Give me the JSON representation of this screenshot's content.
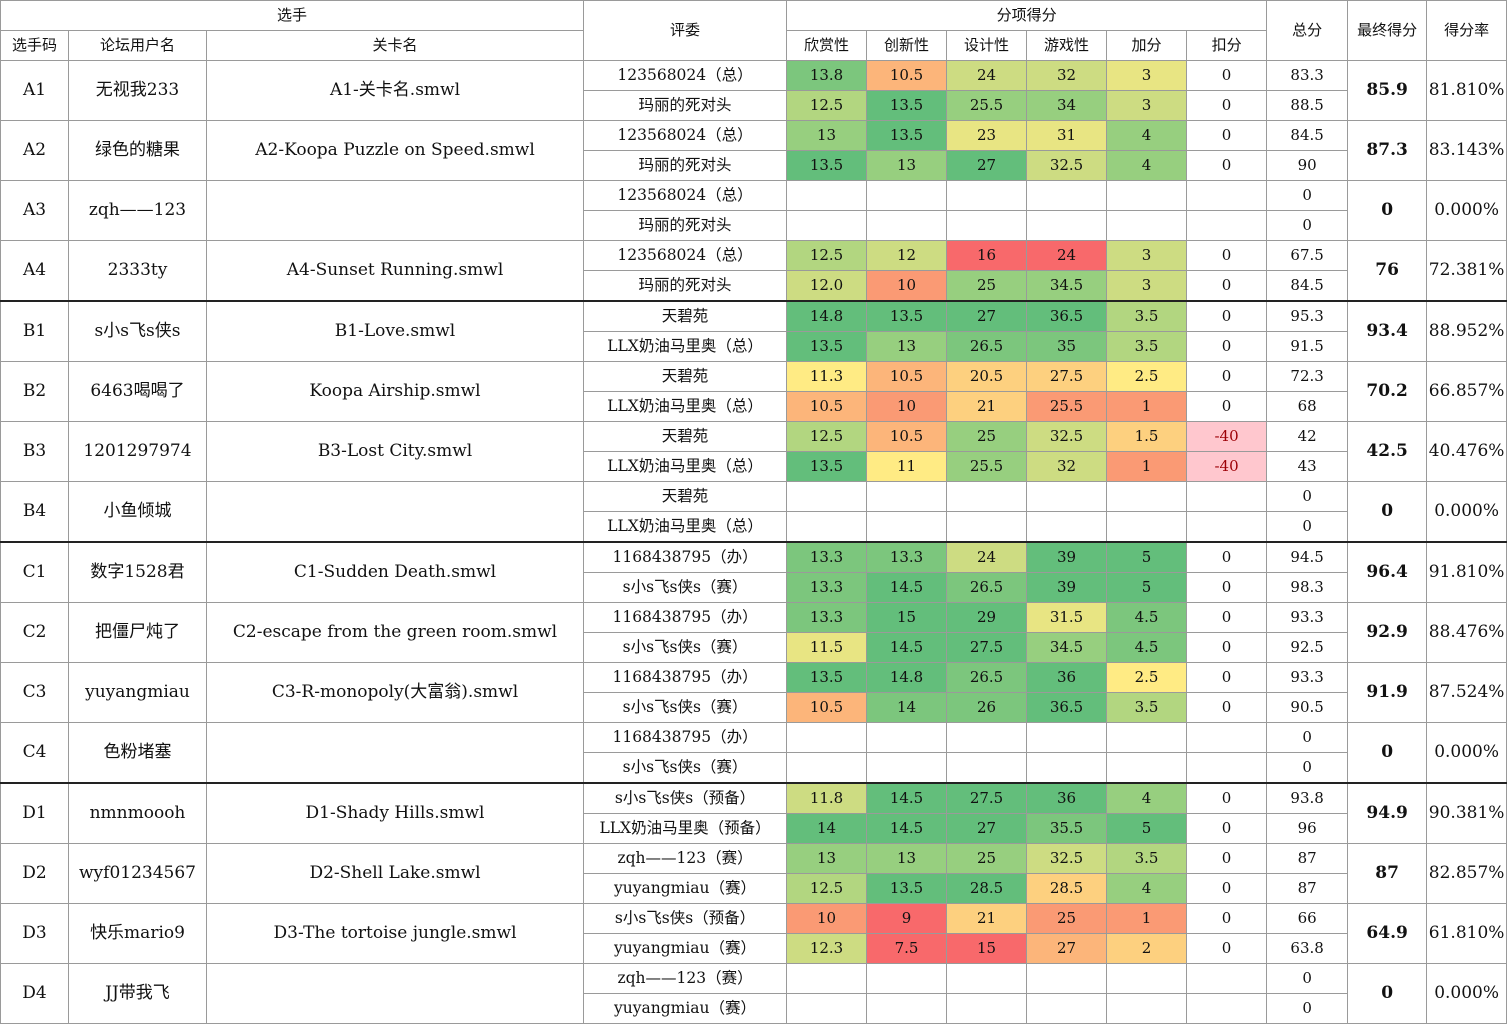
{
  "header": {
    "group_contestant": "选手",
    "contestant_code": "选手码",
    "forum_username": "论坛用户名",
    "level_name": "关卡名",
    "judge": "评委",
    "group_sub_scores": "分项得分",
    "appreciation": "欣赏性",
    "innovation": "创新性",
    "design": "设计性",
    "gameplay": "游戏性",
    "bonus": "加分",
    "penalty": "扣分",
    "total": "总分",
    "final_score": "最终得分",
    "score_rate": "得分率"
  },
  "colors": {
    "g1": "#63be7b",
    "g2": "#7cc67d",
    "g3": "#97cf7f",
    "g4": "#b2d680",
    "y1": "#cddc82",
    "y2": "#e8e583",
    "y3": "#ffeb84",
    "o1": "#fdd07f",
    "o2": "#fcb57a",
    "o3": "#fa9a74",
    "r1": "#f8696b",
    "pink": "#ffc7ce",
    "pink_text": "#9c0006"
  },
  "rows": [
    {
      "code": "A1",
      "user": "无视我233",
      "level": "A1-关卡名.smwl",
      "final": "85.9",
      "rate": "81.810%",
      "judges": [
        {
          "judge": "123568024（总）",
          "scores": [
            "13.8",
            "10.5",
            "24",
            "32",
            "3",
            "0"
          ],
          "colors": [
            "g2",
            "o2",
            "y1",
            "y1",
            "y2",
            "none"
          ],
          "total": "83.3"
        },
        {
          "judge": "玛丽的死对头",
          "scores": [
            "12.5",
            "13.5",
            "25.5",
            "34",
            "3",
            "0"
          ],
          "colors": [
            "g4",
            "g1",
            "g3",
            "g3",
            "y1",
            "none"
          ],
          "total": "88.5"
        }
      ]
    },
    {
      "code": "A2",
      "user": "绿色的糖果",
      "level": "A2-Koopa Puzzle on Speed.smwl",
      "final": "87.3",
      "rate": "83.143%",
      "judges": [
        {
          "judge": "123568024（总）",
          "scores": [
            "13",
            "13.5",
            "23",
            "31",
            "4",
            "0"
          ],
          "colors": [
            "g3",
            "g1",
            "y2",
            "y2",
            "g3",
            "none"
          ],
          "total": "84.5"
        },
        {
          "judge": "玛丽的死对头",
          "scores": [
            "13.5",
            "13",
            "27",
            "32.5",
            "4",
            "0"
          ],
          "colors": [
            "g1",
            "g3",
            "g1",
            "y1",
            "g3",
            "none"
          ],
          "total": "90"
        }
      ]
    },
    {
      "code": "A3",
      "user": "zqh——123",
      "level": "",
      "final": "0",
      "rate": "0.000%",
      "judges": [
        {
          "judge": "123568024（总）",
          "scores": [
            "",
            "",
            "",
            "",
            "",
            ""
          ],
          "colors": [
            "none",
            "none",
            "none",
            "none",
            "none",
            "none"
          ],
          "total": "0"
        },
        {
          "judge": "玛丽的死对头",
          "scores": [
            "",
            "",
            "",
            "",
            "",
            ""
          ],
          "colors": [
            "none",
            "none",
            "none",
            "none",
            "none",
            "none"
          ],
          "total": "0"
        }
      ]
    },
    {
      "code": "A4",
      "user": "2333ty",
      "level": "A4-Sunset Running.smwl",
      "final": "76",
      "rate": "72.381%",
      "judges": [
        {
          "judge": "123568024（总）",
          "scores": [
            "12.5",
            "12",
            "16",
            "24",
            "3",
            "0"
          ],
          "colors": [
            "g4",
            "y1",
            "r1",
            "r1",
            "y1",
            "none"
          ],
          "total": "67.5"
        },
        {
          "judge": "玛丽的死对头",
          "scores": [
            "12.0",
            "10",
            "25",
            "34.5",
            "3",
            "0"
          ],
          "colors": [
            "y1",
            "o3",
            "g3",
            "g3",
            "y1",
            "none"
          ],
          "total": "84.5"
        }
      ]
    },
    {
      "code": "B1",
      "user": "s小s飞s侠s",
      "level": "B1-Love.smwl",
      "final": "93.4",
      "rate": "88.952%",
      "judges": [
        {
          "judge": "天碧苑",
          "scores": [
            "14.8",
            "13.5",
            "27",
            "36.5",
            "3.5",
            "0"
          ],
          "colors": [
            "g1",
            "g1",
            "g1",
            "g1",
            "g4",
            "none"
          ],
          "total": "95.3"
        },
        {
          "judge": "LLX奶油马里奥（总）",
          "scores": [
            "13.5",
            "13",
            "26.5",
            "35",
            "3.5",
            "0"
          ],
          "colors": [
            "g1",
            "g3",
            "g2",
            "g2",
            "g4",
            "none"
          ],
          "total": "91.5"
        }
      ]
    },
    {
      "code": "B2",
      "user": "6463喝喝了",
      "level": "Koopa Airship.smwl",
      "final": "70.2",
      "rate": "66.857%",
      "judges": [
        {
          "judge": "天碧苑",
          "scores": [
            "11.3",
            "10.5",
            "20.5",
            "27.5",
            "2.5",
            "0"
          ],
          "colors": [
            "y3",
            "o2",
            "o1",
            "o1",
            "y3",
            "none"
          ],
          "total": "72.3"
        },
        {
          "judge": "LLX奶油马里奥（总）",
          "scores": [
            "10.5",
            "10",
            "21",
            "25.5",
            "1",
            "0"
          ],
          "colors": [
            "o2",
            "o3",
            "o1",
            "o3",
            "o3",
            "none"
          ],
          "total": "68"
        }
      ]
    },
    {
      "code": "B3",
      "user": "1201297974",
      "level": "B3-Lost City.smwl",
      "final": "42.5",
      "rate": "40.476%",
      "judges": [
        {
          "judge": "天碧苑",
          "scores": [
            "12.5",
            "10.5",
            "25",
            "32.5",
            "1.5",
            "-40"
          ],
          "colors": [
            "g4",
            "o2",
            "g3",
            "y1",
            "o1",
            "pink"
          ],
          "total": "42"
        },
        {
          "judge": "LLX奶油马里奥（总）",
          "scores": [
            "13.5",
            "11",
            "25.5",
            "32",
            "1",
            "-40"
          ],
          "colors": [
            "g1",
            "y3",
            "g3",
            "y1",
            "o3",
            "pink"
          ],
          "total": "43"
        }
      ]
    },
    {
      "code": "B4",
      "user": "小鱼倾城",
      "level": "",
      "final": "0",
      "rate": "0.000%",
      "judges": [
        {
          "judge": "天碧苑",
          "scores": [
            "",
            "",
            "",
            "",
            "",
            ""
          ],
          "colors": [
            "none",
            "none",
            "none",
            "none",
            "none",
            "none"
          ],
          "total": "0"
        },
        {
          "judge": "LLX奶油马里奥（总）",
          "scores": [
            "",
            "",
            "",
            "",
            "",
            ""
          ],
          "colors": [
            "none",
            "none",
            "none",
            "none",
            "none",
            "none"
          ],
          "total": "0"
        }
      ]
    },
    {
      "code": "C1",
      "user": "数字1528君",
      "level": "C1-Sudden Death.smwl",
      "final": "96.4",
      "rate": "91.810%",
      "judges": [
        {
          "judge": "1168438795（办）",
          "scores": [
            "13.3",
            "13.3",
            "24",
            "39",
            "5",
            "0"
          ],
          "colors": [
            "g2",
            "g2",
            "y1",
            "g1",
            "g1",
            "none"
          ],
          "total": "94.5"
        },
        {
          "judge": "s小s飞s侠s（赛）",
          "scores": [
            "13.3",
            "14.5",
            "26.5",
            "39",
            "5",
            "0"
          ],
          "colors": [
            "g2",
            "g1",
            "g2",
            "g1",
            "g1",
            "none"
          ],
          "total": "98.3"
        }
      ]
    },
    {
      "code": "C2",
      "user": "把僵尸炖了",
      "level": "C2-escape from the green room.smwl",
      "final": "92.9",
      "rate": "88.476%",
      "judges": [
        {
          "judge": "1168438795（办）",
          "scores": [
            "13.3",
            "15",
            "29",
            "31.5",
            "4.5",
            "0"
          ],
          "colors": [
            "g2",
            "g1",
            "g1",
            "y2",
            "g2",
            "none"
          ],
          "total": "93.3"
        },
        {
          "judge": "s小s飞s侠s（赛）",
          "scores": [
            "11.5",
            "14.5",
            "27.5",
            "34.5",
            "4.5",
            "0"
          ],
          "colors": [
            "y2",
            "g1",
            "g1",
            "g3",
            "g2",
            "none"
          ],
          "total": "92.5"
        }
      ]
    },
    {
      "code": "C3",
      "user": "yuyangmiau",
      "level": "C3-R-monopoly(大富翁).smwl",
      "final": "91.9",
      "rate": "87.524%",
      "judges": [
        {
          "judge": "1168438795（办）",
          "scores": [
            "13.5",
            "14.8",
            "26.5",
            "36",
            "2.5",
            "0"
          ],
          "colors": [
            "g1",
            "g1",
            "g2",
            "g1",
            "y3",
            "none"
          ],
          "total": "93.3"
        },
        {
          "judge": "s小s飞s侠s（赛）",
          "scores": [
            "10.5",
            "14",
            "26",
            "36.5",
            "3.5",
            "0"
          ],
          "colors": [
            "o2",
            "g2",
            "g2",
            "g1",
            "g4",
            "none"
          ],
          "total": "90.5"
        }
      ]
    },
    {
      "code": "C4",
      "user": "色粉堵塞",
      "level": "",
      "final": "0",
      "rate": "0.000%",
      "judges": [
        {
          "judge": "1168438795（办）",
          "scores": [
            "",
            "",
            "",
            "",
            "",
            ""
          ],
          "colors": [
            "none",
            "none",
            "none",
            "none",
            "none",
            "none"
          ],
          "total": "0"
        },
        {
          "judge": "s小s飞s侠s（赛）",
          "scores": [
            "",
            "",
            "",
            "",
            "",
            ""
          ],
          "colors": [
            "none",
            "none",
            "none",
            "none",
            "none",
            "none"
          ],
          "total": "0"
        }
      ]
    },
    {
      "code": "D1",
      "user": "nmnmoooh",
      "level": "D1-Shady Hills.smwl",
      "final": "94.9",
      "rate": "90.381%",
      "judges": [
        {
          "judge": "s小s飞s侠s（预备）",
          "scores": [
            "11.8",
            "14.5",
            "27.5",
            "36",
            "4",
            "0"
          ],
          "colors": [
            "y1",
            "g1",
            "g1",
            "g1",
            "g3",
            "none"
          ],
          "total": "93.8"
        },
        {
          "judge": "LLX奶油马里奥（预备）",
          "scores": [
            "14",
            "14.5",
            "27",
            "35.5",
            "5",
            "0"
          ],
          "colors": [
            "g1",
            "g1",
            "g1",
            "g2",
            "g1",
            "none"
          ],
          "total": "96"
        }
      ]
    },
    {
      "code": "D2",
      "user": "wyf01234567",
      "level": "D2-Shell Lake.smwl",
      "final": "87",
      "rate": "82.857%",
      "judges": [
        {
          "judge": "zqh——123（赛）",
          "scores": [
            "13",
            "13",
            "25",
            "32.5",
            "3.5",
            "0"
          ],
          "colors": [
            "g3",
            "g3",
            "g3",
            "y1",
            "g4",
            "none"
          ],
          "total": "87"
        },
        {
          "judge": "yuyangmiau（赛）",
          "scores": [
            "12.5",
            "13.5",
            "28.5",
            "28.5",
            "4",
            "0"
          ],
          "colors": [
            "g4",
            "g1",
            "g1",
            "o1",
            "g3",
            "none"
          ],
          "total": "87"
        }
      ]
    },
    {
      "code": "D3",
      "user": "快乐mario9",
      "level": "D3-The tortoise jungle.smwl",
      "final": "64.9",
      "rate": "61.810%",
      "judges": [
        {
          "judge": "s小s飞s侠s（预备）",
          "scores": [
            "10",
            "9",
            "21",
            "25",
            "1",
            "0"
          ],
          "colors": [
            "o3",
            "r1",
            "o1",
            "o3",
            "o3",
            "none"
          ],
          "total": "66"
        },
        {
          "judge": "yuyangmiau（赛）",
          "scores": [
            "12.3",
            "7.5",
            "15",
            "27",
            "2",
            "0"
          ],
          "colors": [
            "y1",
            "r1",
            "r1",
            "o2",
            "o1",
            "none"
          ],
          "total": "63.8"
        }
      ]
    },
    {
      "code": "D4",
      "user": "JJ带我飞",
      "level": "",
      "final": "0",
      "rate": "0.000%",
      "judges": [
        {
          "judge": "zqh——123（赛）",
          "scores": [
            "",
            "",
            "",
            "",
            "",
            ""
          ],
          "colors": [
            "none",
            "none",
            "none",
            "none",
            "none",
            "none"
          ],
          "total": "0"
        },
        {
          "judge": "yuyangmiau（赛）",
          "scores": [
            "",
            "",
            "",
            "",
            "",
            ""
          ],
          "colors": [
            "none",
            "none",
            "none",
            "none",
            "none",
            "none"
          ],
          "total": "0"
        }
      ]
    }
  ]
}
